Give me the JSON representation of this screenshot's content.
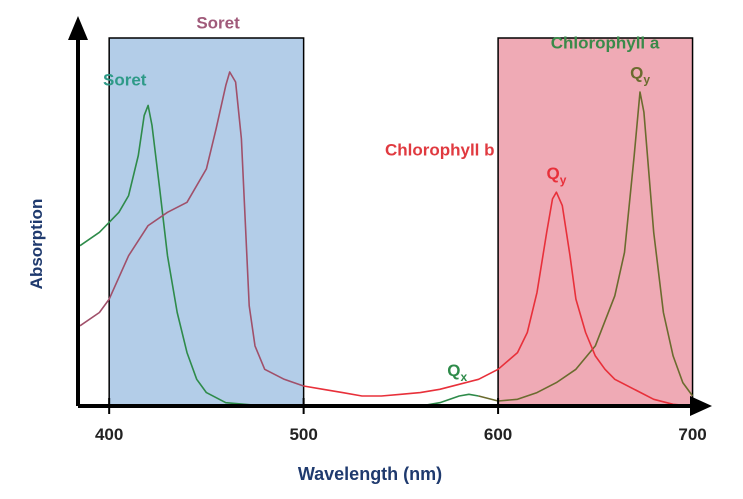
{
  "chart_data": {
    "type": "line",
    "title": "",
    "xlabel": "Wavelength (nm)",
    "ylabel": "Absorption",
    "xlim": [
      385,
      710
    ],
    "ylim": [
      0,
      1
    ],
    "xticks": [
      {
        "value": 400,
        "label": "400"
      },
      {
        "value": 500,
        "label": "500"
      },
      {
        "value": 600,
        "label": "600"
      },
      {
        "value": 700,
        "label": "700"
      }
    ],
    "regions": [
      {
        "x0": 400,
        "x1": 500,
        "color": "#b3cde8",
        "name": "blue region"
      },
      {
        "x0": 600,
        "x1": 700,
        "color": "#efaab5",
        "name": "red region"
      }
    ],
    "series": [
      {
        "name": "Chlorophyll a",
        "color": "#2e8b4a",
        "color2": "#6b6b2e",
        "switch_x": 590,
        "points": [
          [
            385,
            0.48
          ],
          [
            395,
            0.52
          ],
          [
            400,
            0.55
          ],
          [
            405,
            0.58
          ],
          [
            410,
            0.63
          ],
          [
            415,
            0.75
          ],
          [
            418,
            0.87
          ],
          [
            420,
            0.9
          ],
          [
            422,
            0.84
          ],
          [
            426,
            0.65
          ],
          [
            430,
            0.45
          ],
          [
            435,
            0.28
          ],
          [
            440,
            0.16
          ],
          [
            445,
            0.08
          ],
          [
            450,
            0.04
          ],
          [
            460,
            0.01
          ],
          [
            480,
            0.0
          ],
          [
            500,
            0.0
          ],
          [
            520,
            0.0
          ],
          [
            540,
            0.0
          ],
          [
            560,
            0.0
          ],
          [
            570,
            0.01
          ],
          [
            580,
            0.03
          ],
          [
            585,
            0.035
          ],
          [
            590,
            0.03
          ],
          [
            600,
            0.015
          ],
          [
            610,
            0.02
          ],
          [
            620,
            0.04
          ],
          [
            630,
            0.07
          ],
          [
            640,
            0.11
          ],
          [
            650,
            0.18
          ],
          [
            660,
            0.33
          ],
          [
            665,
            0.46
          ],
          [
            670,
            0.75
          ],
          [
            673,
            0.94
          ],
          [
            675,
            0.88
          ],
          [
            680,
            0.52
          ],
          [
            685,
            0.28
          ],
          [
            690,
            0.15
          ],
          [
            695,
            0.07
          ],
          [
            700,
            0.03
          ]
        ]
      },
      {
        "name": "Chlorophyll b",
        "color": "#a0506a",
        "color2": "#e8303a",
        "switch_x": 500,
        "points": [
          [
            385,
            0.24
          ],
          [
            395,
            0.28
          ],
          [
            400,
            0.32
          ],
          [
            410,
            0.45
          ],
          [
            420,
            0.54
          ],
          [
            430,
            0.58
          ],
          [
            440,
            0.61
          ],
          [
            450,
            0.71
          ],
          [
            455,
            0.83
          ],
          [
            460,
            0.96
          ],
          [
            462,
            1.0
          ],
          [
            465,
            0.97
          ],
          [
            468,
            0.8
          ],
          [
            470,
            0.55
          ],
          [
            472,
            0.3
          ],
          [
            475,
            0.18
          ],
          [
            480,
            0.11
          ],
          [
            490,
            0.08
          ],
          [
            500,
            0.06
          ],
          [
            510,
            0.05
          ],
          [
            520,
            0.04
          ],
          [
            530,
            0.03
          ],
          [
            540,
            0.03
          ],
          [
            550,
            0.035
          ],
          [
            560,
            0.04
          ],
          [
            570,
            0.05
          ],
          [
            580,
            0.065
          ],
          [
            590,
            0.08
          ],
          [
            600,
            0.11
          ],
          [
            610,
            0.16
          ],
          [
            615,
            0.22
          ],
          [
            620,
            0.34
          ],
          [
            625,
            0.52
          ],
          [
            628,
            0.62
          ],
          [
            630,
            0.64
          ],
          [
            633,
            0.6
          ],
          [
            637,
            0.45
          ],
          [
            640,
            0.32
          ],
          [
            645,
            0.22
          ],
          [
            650,
            0.15
          ],
          [
            655,
            0.11
          ],
          [
            660,
            0.08
          ],
          [
            670,
            0.05
          ],
          [
            680,
            0.02
          ],
          [
            690,
            0.005
          ],
          [
            700,
            0.0
          ]
        ]
      }
    ],
    "annotations": [
      {
        "text": "Soret",
        "x": 408,
        "y": 0.96,
        "color": "#2e9a88"
      },
      {
        "text": "Soret",
        "x": 456,
        "y": 1.13,
        "color": "#a05a7a"
      },
      {
        "text": "Chlorophyll a",
        "x": 655,
        "y": 1.07,
        "color": "#3a8a4a"
      },
      {
        "text": "Chlorophyll b",
        "x": 570,
        "y": 0.75,
        "color": "#e03a40"
      },
      {
        "text": "Q",
        "sub": "y",
        "x": 673,
        "y": 0.98,
        "color": "#6b6b2e"
      },
      {
        "text": "Q",
        "sub": "y",
        "x": 630,
        "y": 0.68,
        "color": "#e8303a"
      },
      {
        "text": "Q",
        "sub": "x",
        "x": 579,
        "y": 0.09,
        "color": "#2e8b4a"
      }
    ]
  }
}
